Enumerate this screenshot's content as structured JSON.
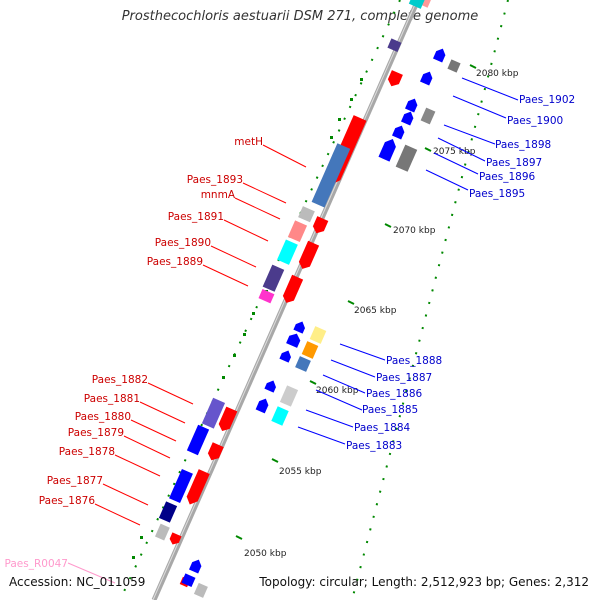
{
  "title": "Prosthecochloris aestuarii DSM 271, complete genome",
  "footer": {
    "accession": "Accession: NC_011059",
    "topology": "Topology: circular; Length: 2,512,923 bp; Genes: 2,312"
  },
  "colors": {
    "forward": "#ff0000",
    "reverse": "#0000ff",
    "backbone": "#999999",
    "forward_label": "#cc0000",
    "reverse_label": "#0000cc",
    "rna_label": "#ff99cc",
    "tick": "#007700"
  },
  "ticks": [
    {
      "label": "2080 kbp"
    },
    {
      "label": "2075 kbp"
    },
    {
      "label": "2070 kbp"
    },
    {
      "label": "2065 kbp"
    },
    {
      "label": "2060 kbp"
    },
    {
      "label": "2055 kbp"
    },
    {
      "label": "2050 kbp"
    }
  ],
  "left_labels": [
    {
      "text": "metH"
    },
    {
      "text": "Paes_1893"
    },
    {
      "text": "mnmA"
    },
    {
      "text": "Paes_1891"
    },
    {
      "text": "Paes_1890"
    },
    {
      "text": "Paes_1889"
    },
    {
      "text": "Paes_1882"
    },
    {
      "text": "Paes_1881"
    },
    {
      "text": "Paes_1880"
    },
    {
      "text": "Paes_1879"
    },
    {
      "text": "Paes_1878"
    },
    {
      "text": "Paes_1877"
    },
    {
      "text": "Paes_1876"
    },
    {
      "text": "Paes_R0047"
    }
  ],
  "right_labels": [
    {
      "text": "Paes_1902"
    },
    {
      "text": "Paes_1900"
    },
    {
      "text": "Paes_1898"
    },
    {
      "text": "Paes_1897"
    },
    {
      "text": "Paes_1896"
    },
    {
      "text": "Paes_1895"
    },
    {
      "text": "Paes_1888"
    },
    {
      "text": "Paes_1887"
    },
    {
      "text": "Paes_1886"
    },
    {
      "text": "Paes_1885"
    },
    {
      "text": "Paes_1884"
    },
    {
      "text": "Paes_1883"
    }
  ]
}
